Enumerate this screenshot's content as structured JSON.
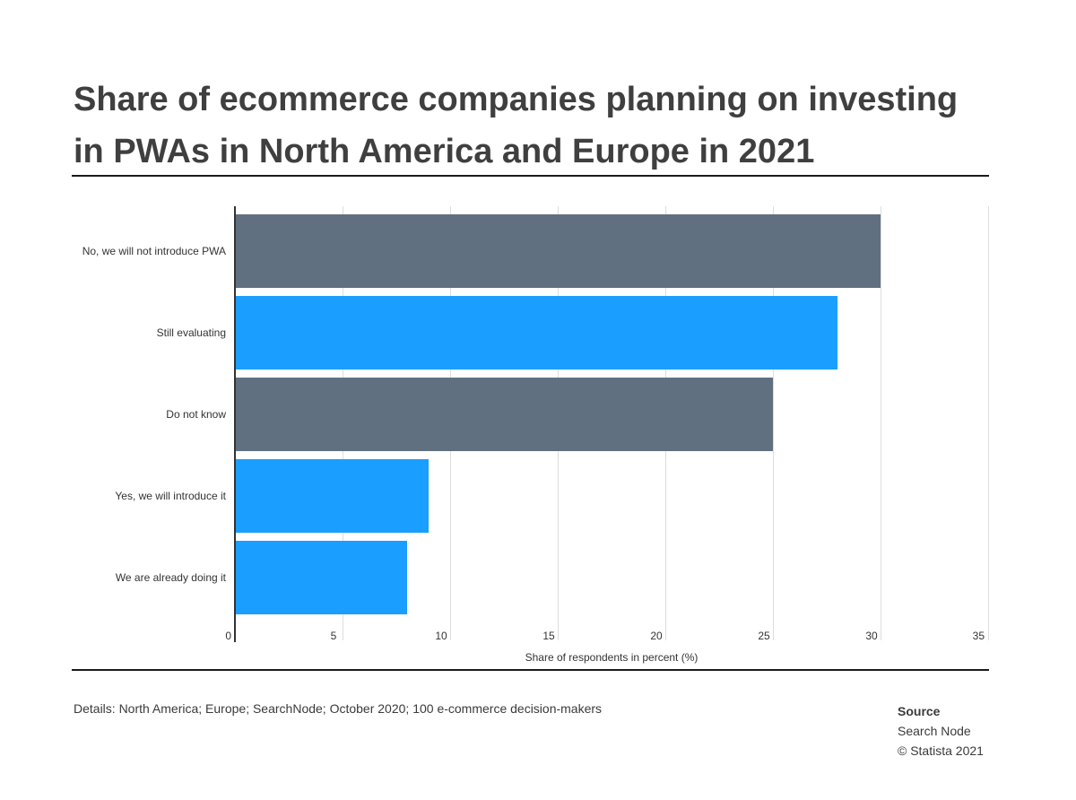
{
  "chart_data": {
    "type": "bar",
    "orientation": "horizontal",
    "title": "Share of ecommerce companies planning on investing in PWAs in North America and Europe in 2021",
    "categories": [
      "No, we will not introduce PWA",
      "Still evaluating",
      "Do not know",
      "Yes, we will introduce it",
      "We are already doing it"
    ],
    "values": [
      30,
      28,
      25,
      9,
      8
    ],
    "bar_colors": [
      "#607080",
      "#1a9eff",
      "#607080",
      "#1a9eff",
      "#1a9eff"
    ],
    "xlabel": "Share of respondents in percent (%)",
    "ylabel": "",
    "xlim": [
      0,
      35
    ],
    "xticks": [
      0,
      5,
      10,
      15,
      20,
      25,
      30,
      35
    ],
    "grid": true
  },
  "footer": {
    "details": "Details: North America; Europe; SearchNode; October 2020; 100 e-commerce decision-makers",
    "source_heading": "Source",
    "source_name": "Search Node",
    "copyright": "© Statista 2021"
  }
}
